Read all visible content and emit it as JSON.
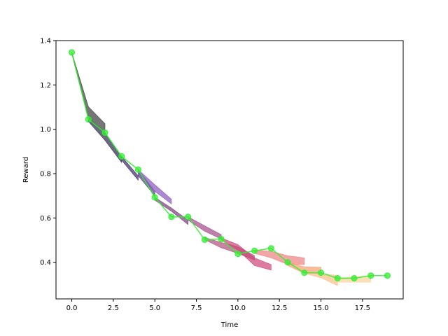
{
  "chart_data": {
    "type": "line",
    "title": "",
    "xlabel": "Time",
    "ylabel": "Reward",
    "xlim": [
      -0.95,
      19.95
    ],
    "ylim": [
      0.235,
      1.4
    ],
    "xticks": [
      0.0,
      2.5,
      5.0,
      7.5,
      10.0,
      12.5,
      15.0,
      17.5
    ],
    "xtick_labels": [
      "0.0",
      "2.5",
      "5.0",
      "7.5",
      "10.0",
      "12.5",
      "15.0",
      "17.5"
    ],
    "yticks": [
      0.4,
      0.6,
      0.8,
      1.0,
      1.2,
      1.4
    ],
    "ytick_labels": [
      "0.4",
      "0.6",
      "0.8",
      "1.0",
      "1.2",
      "1.4"
    ],
    "grid": false,
    "legend": "none",
    "main_series": {
      "color": "#33ee33",
      "x": [
        0,
        1,
        2,
        3,
        4,
        5,
        6,
        7,
        8,
        9,
        10,
        11,
        12,
        13,
        14,
        15,
        16,
        17,
        18,
        19
      ],
      "y": [
        1.347,
        1.045,
        0.985,
        0.878,
        0.818,
        0.693,
        0.605,
        0.605,
        0.502,
        0.505,
        0.438,
        0.452,
        0.463,
        0.4,
        0.353,
        0.353,
        0.328,
        0.328,
        0.34,
        0.34
      ]
    },
    "bands": [
      {
        "color": "#3a3a3a",
        "x": [
          0,
          1,
          2
        ],
        "lower": [
          1.34,
          1.05,
          0.985
        ],
        "upper": [
          1.347,
          1.102,
          1.025
        ]
      },
      {
        "color": "#2a2a4a",
        "x": [
          1,
          2,
          3
        ],
        "lower": [
          1.035,
          0.95,
          0.85
        ],
        "upper": [
          1.045,
          0.985,
          0.875
        ]
      },
      {
        "color": "#3d2a66",
        "x": [
          3,
          4
        ],
        "lower": [
          0.86,
          0.77
        ],
        "upper": [
          0.878,
          0.79
        ]
      },
      {
        "color": "#5a3a88",
        "x": [
          4,
          5
        ],
        "lower": [
          0.79,
          0.7
        ],
        "upper": [
          0.818,
          0.72
        ]
      },
      {
        "color": "#8855bb",
        "x": [
          4,
          5,
          6
        ],
        "lower": [
          0.8,
          0.72,
          0.663
        ],
        "upper": [
          0.818,
          0.75,
          0.685
        ]
      },
      {
        "color": "#7a3a7a",
        "x": [
          5,
          6,
          7
        ],
        "lower": [
          0.68,
          0.63,
          0.57
        ],
        "upper": [
          0.693,
          0.645,
          0.59
        ]
      },
      {
        "color": "#a04a88",
        "x": [
          7,
          8,
          9
        ],
        "lower": [
          0.59,
          0.54,
          0.505
        ],
        "upper": [
          0.605,
          0.565,
          0.525
        ]
      },
      {
        "color": "#b0507a",
        "x": [
          8,
          9,
          10,
          11
        ],
        "lower": [
          0.502,
          0.465,
          0.44,
          0.41
        ],
        "upper": [
          0.512,
          0.49,
          0.47,
          0.43
        ]
      },
      {
        "color": "#cc4477",
        "x": [
          9,
          10,
          11,
          12
        ],
        "lower": [
          0.5,
          0.455,
          0.385,
          0.365
        ],
        "upper": [
          0.51,
          0.48,
          0.42,
          0.39
        ]
      },
      {
        "color": "#ee8080",
        "x": [
          11,
          12,
          13,
          14
        ],
        "lower": [
          0.44,
          0.42,
          0.39,
          0.39
        ],
        "upper": [
          0.455,
          0.45,
          0.43,
          0.42
        ]
      },
      {
        "color": "#f5a070",
        "x": [
          13,
          14,
          15
        ],
        "lower": [
          0.385,
          0.35,
          0.35
        ],
        "upper": [
          0.4,
          0.38,
          0.378
        ]
      },
      {
        "color": "#f8c088",
        "x": [
          14,
          15,
          16
        ],
        "lower": [
          0.35,
          0.33,
          0.295
        ],
        "upper": [
          0.36,
          0.35,
          0.34
        ]
      },
      {
        "color": "#fad49a",
        "x": [
          16,
          17,
          18
        ],
        "lower": [
          0.31,
          0.31,
          0.31
        ],
        "upper": [
          0.33,
          0.335,
          0.34
        ]
      }
    ]
  }
}
